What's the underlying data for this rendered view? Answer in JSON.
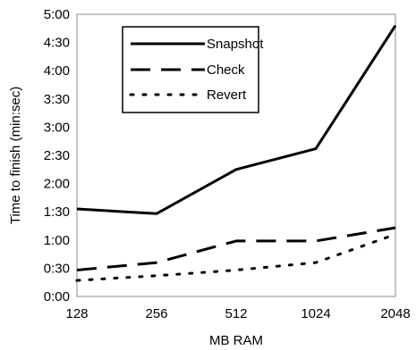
{
  "chart_data": {
    "type": "line",
    "title": "",
    "xlabel": "MB RAM",
    "ylabel": "Time to finish (min:sec)",
    "categories": [
      "128",
      "256",
      "512",
      "1024",
      "2048"
    ],
    "y_ticks": [
      "0:00",
      "0:30",
      "1:00",
      "1:30",
      "2:00",
      "2:30",
      "3:00",
      "3:30",
      "4:00",
      "4:30",
      "5:00"
    ],
    "ylim_seconds": [
      0,
      300
    ],
    "grid": false,
    "legend_position": "top-left",
    "series": [
      {
        "name": "Snapshot",
        "style": "solid",
        "values_seconds": [
          93,
          88,
          135,
          157,
          288
        ]
      },
      {
        "name": "Check",
        "style": "long-dash",
        "values_seconds": [
          28,
          36,
          59,
          59,
          73
        ]
      },
      {
        "name": "Revert",
        "style": "dotted",
        "values_seconds": [
          17,
          22,
          28,
          36,
          66
        ]
      }
    ]
  }
}
